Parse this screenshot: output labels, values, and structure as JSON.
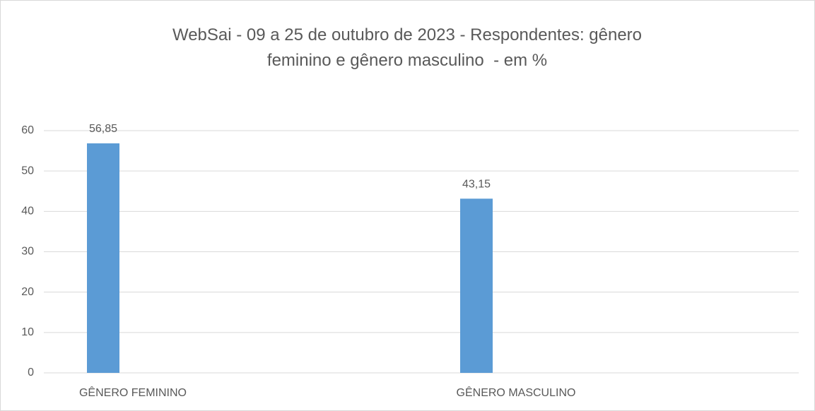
{
  "chart_data": {
    "type": "bar",
    "title": "WebSai - 09 a 25 de outubro de 2023 - Respondentes: gênero feminino e gênero masculino  - em %",
    "categories": [
      "GÊNERO FEMININO",
      "GÊNERO MASCULINO"
    ],
    "values": [
      56.85,
      43.15
    ],
    "value_labels": [
      "56,85",
      "43,15"
    ],
    "color": "#5b9bd5",
    "ylim": [
      0,
      60
    ],
    "yticks": [
      0,
      10,
      20,
      30,
      40,
      50,
      60
    ],
    "grid": true
  }
}
